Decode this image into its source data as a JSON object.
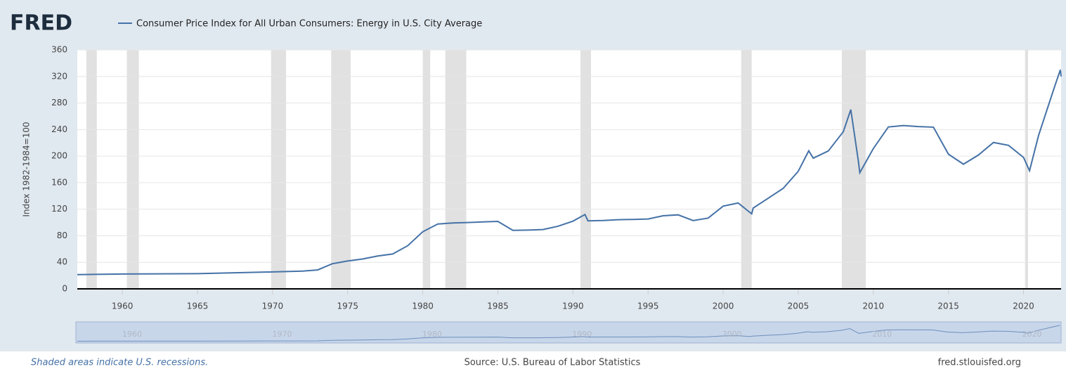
{
  "chart_data": {
    "type": "line",
    "logo": "FRED",
    "title": "Consumer Price Index for All Urban Consumers: Energy in U.S. City Average",
    "y_label": "Index 1982-1984=100",
    "note": "Shaded areas indicate U.S. recessions.",
    "source": "Source: U.S. Bureau of Labor Statistics",
    "site": "fred.stlouisfed.org",
    "x": [
      1957,
      1960,
      1965,
      1970,
      1972,
      1973,
      1974,
      1975,
      1976,
      1977,
      1978,
      1979,
      1980,
      1981,
      1982,
      1983,
      1984,
      1985,
      1986,
      1987,
      1988,
      1989,
      1990,
      1990.8,
      1991,
      1992,
      1993,
      1994,
      1995,
      1996,
      1997,
      1998,
      1999,
      2000,
      2001,
      2001.9,
      2002,
      2003,
      2004,
      2005,
      2005.7,
      2006,
      2007,
      2008,
      2008.5,
      2009,
      2009.1,
      2010,
      2011,
      2012,
      2013,
      2014,
      2015,
      2016,
      2017,
      2018,
      2019,
      2020,
      2020.4,
      2021,
      2022,
      2022.45,
      2022.5
    ],
    "series": [
      {
        "name": "Consumer Price Index for All Urban Consumers: Energy in U.S. City Average",
        "color": "#4572a7",
        "values": [
          21.5,
          22.4,
          22.9,
          25.5,
          26.8,
          28.5,
          38,
          42,
          45,
          49.5,
          52.5,
          65,
          86,
          97.7,
          99.2,
          99.9,
          100.9,
          101.6,
          88.2,
          88.6,
          89.3,
          94.3,
          102,
          112,
          102.5,
          103,
          104.2,
          104.6,
          105.2,
          110.1,
          111.5,
          102.9,
          106.6,
          124.6,
          129.3,
          113,
          121.7,
          136.5,
          151.4,
          177.1,
          208,
          196.9,
          207.7,
          236.7,
          270,
          193,
          175,
          211.4,
          243.9,
          246.1,
          244.4,
          243.6,
          202.9,
          187.8,
          201.7,
          220.5,
          216.2,
          198,
          178,
          231,
          300,
          330,
          320
        ]
      }
    ],
    "recessions": [
      [
        1957.6,
        1958.3
      ],
      [
        1960.3,
        1961.1
      ],
      [
        1969.9,
        1970.9
      ],
      [
        1973.9,
        1975.2
      ],
      [
        1980.0,
        1980.5
      ],
      [
        1981.5,
        1982.9
      ],
      [
        1990.5,
        1991.2
      ],
      [
        2001.2,
        2001.9
      ],
      [
        2007.9,
        2009.5
      ],
      [
        2020.1,
        2020.3
      ]
    ],
    "xlim": [
      1957,
      2022.5
    ],
    "xticks": [
      1960,
      1965,
      1970,
      1975,
      1980,
      1985,
      1990,
      1995,
      2000,
      2005,
      2010,
      2015,
      2020
    ],
    "ylim": [
      0,
      360
    ],
    "yticks": [
      0,
      40,
      80,
      120,
      160,
      200,
      240,
      280,
      320,
      360
    ],
    "navigator_ticks": [
      1960,
      1970,
      1980,
      1990,
      2000,
      2010,
      2020
    ],
    "grid": true
  }
}
